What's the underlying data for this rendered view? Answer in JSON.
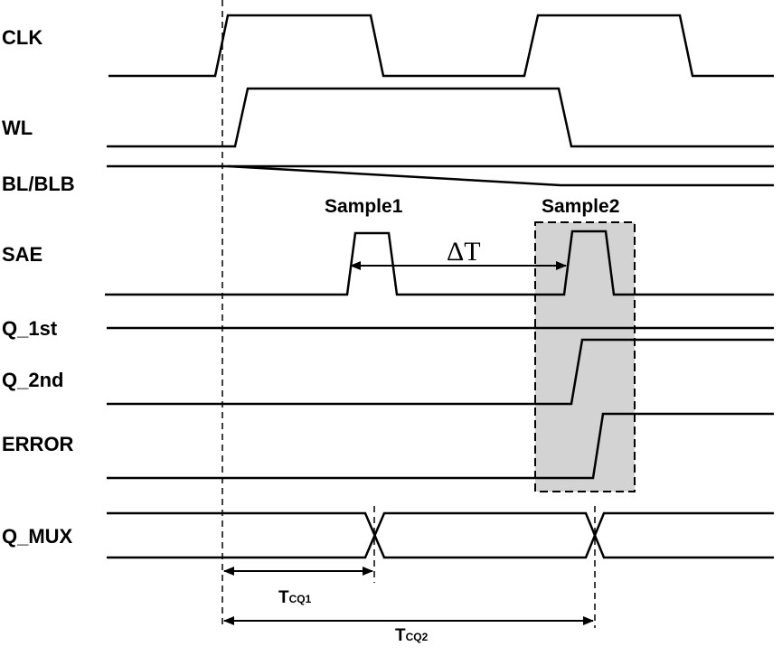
{
  "signals": {
    "clk": "CLK",
    "wl": "WL",
    "bl": "BL/BLB",
    "sae": "SAE",
    "q1": "Q_1st",
    "q2": "Q_2nd",
    "error": "ERROR",
    "qmux": "Q_MUX"
  },
  "annotations": {
    "sample1": "Sample1",
    "sample2": "Sample2",
    "delta_t": "ΔT"
  },
  "timing": {
    "tcq1_main": "T",
    "tcq1_sub": "CQ1",
    "tcq2_main": "T",
    "tcq2_sub": "CQ2"
  },
  "colors": {
    "highlight": "#d3d3d3",
    "line": "#000000"
  }
}
